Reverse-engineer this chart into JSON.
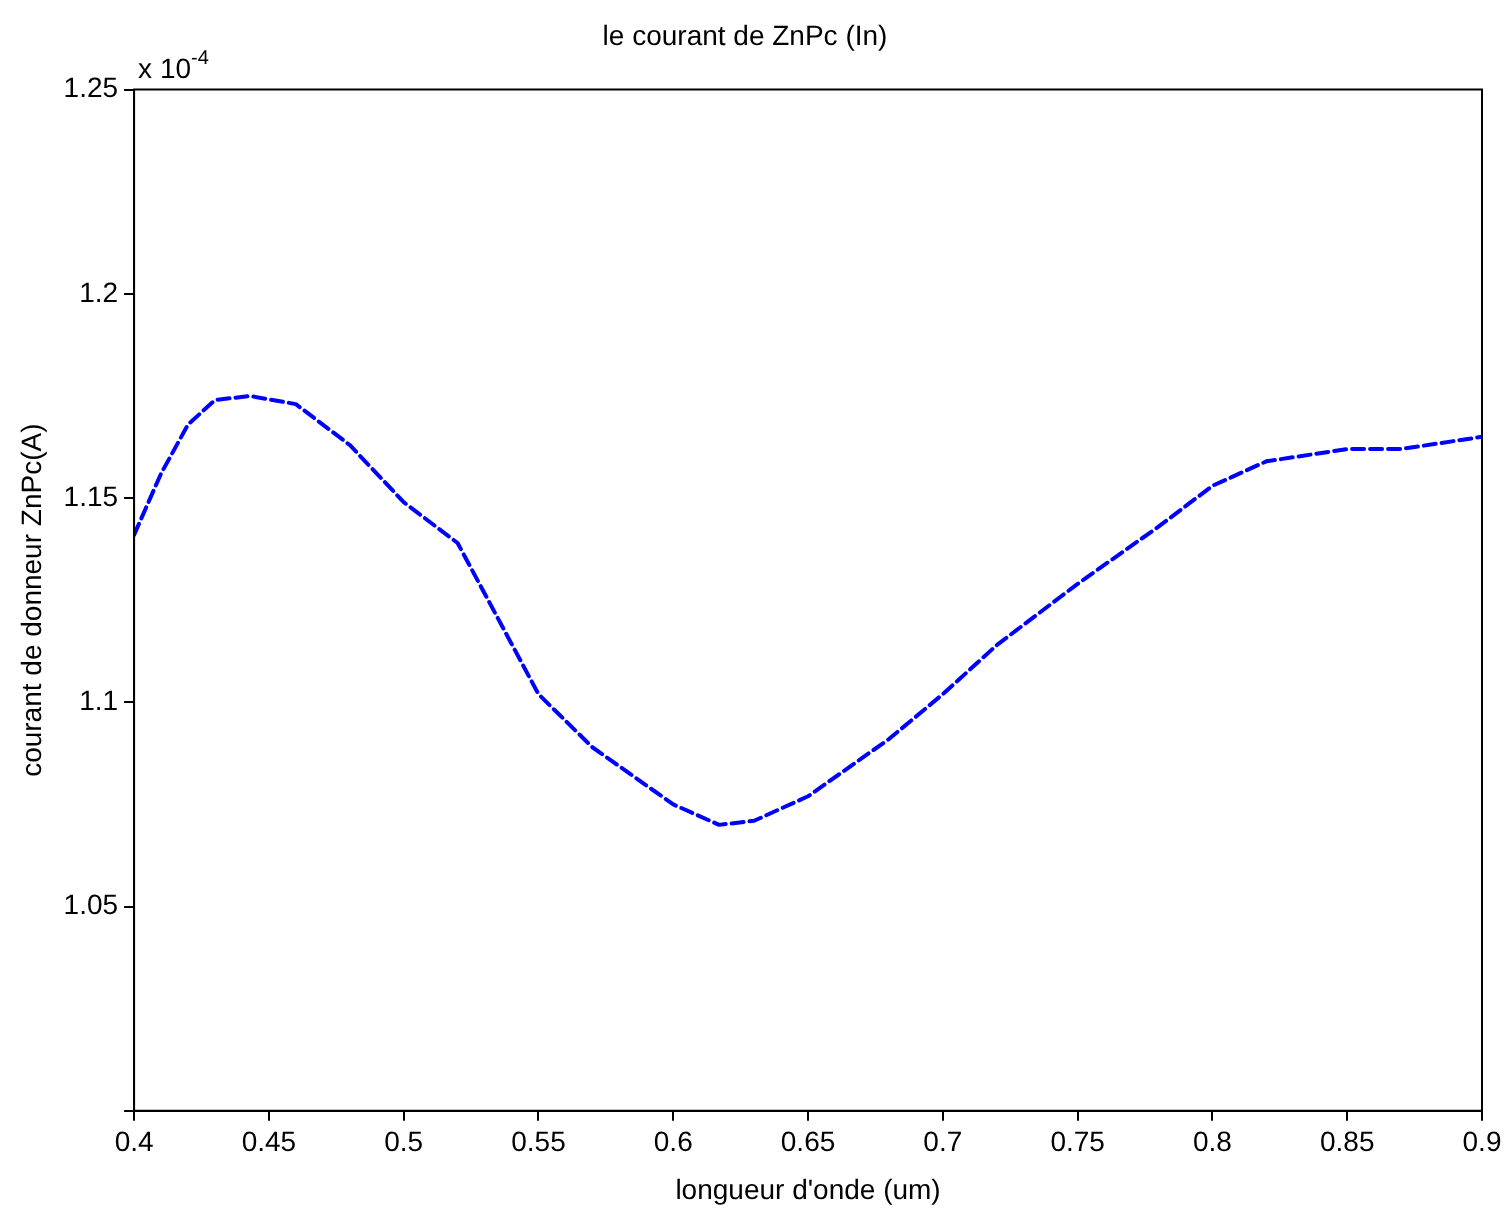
{
  "chart_data": {
    "type": "line",
    "title": "le courant de ZnPc (In)",
    "xlabel": "longueur d'onde (um)",
    "ylabel": "courant de donneur ZnPc(A)",
    "annotations": [
      "x 10$^{-4}$"
    ],
    "x": [
      0.4,
      0.41,
      0.42,
      0.43,
      0.443,
      0.46,
      0.48,
      0.5,
      0.52,
      0.55,
      0.57,
      0.6,
      0.617,
      0.63,
      0.65,
      0.68,
      0.7,
      0.72,
      0.75,
      0.78,
      0.8,
      0.82,
      0.85,
      0.87,
      0.9
    ],
    "series": [
      {
        "color": "#0000ff",
        "values": [
          1.141,
          1.156,
          1.168,
          1.174,
          1.175,
          1.173,
          1.163,
          1.149,
          1.139,
          1.102,
          1.089,
          1.075,
          1.07,
          1.071,
          1.077,
          1.091,
          1.102,
          1.114,
          1.129,
          1.143,
          1.153,
          1.159,
          1.162,
          1.162,
          1.165
        ]
      }
    ],
    "xlim": [
      0.4,
      0.9
    ],
    "xticks": [
      0.4,
      0.45,
      0.5,
      0.55,
      0.6,
      0.65,
      0.7,
      0.75,
      0.8,
      0.85,
      0.9
    ],
    "ylim": [
      1.0,
      1.25
    ],
    "yticks": [
      {
        "value": 1,
        "label": null
      },
      1.05,
      1.1,
      1.15,
      1.2,
      1.25
    ],
    "grid": false,
    "legend": false,
    "marker": "none",
    "line_style": "dashed"
  }
}
